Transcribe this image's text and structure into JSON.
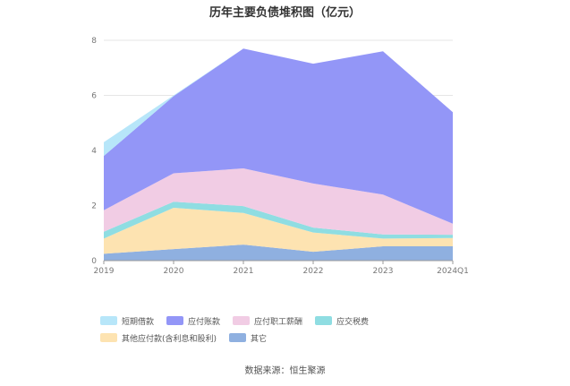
{
  "chart_data": {
    "type": "area",
    "stacked": true,
    "title": "历年主要负债堆积图（亿元）",
    "categories": [
      "2019",
      "2020",
      "2021",
      "2022",
      "2023",
      "2024Q1"
    ],
    "yticks": [
      "0",
      "2",
      "4",
      "6",
      "8"
    ],
    "ylim": [
      0,
      8
    ],
    "grid": true,
    "legend_position": "bottom",
    "series": [
      {
        "name": "其它",
        "color": "#8fb0e0",
        "values": [
          0.25,
          0.42,
          0.58,
          0.32,
          0.52,
          0.52
        ]
      },
      {
        "name": "其他应付款(含利息和股利)",
        "color": "#fde3b1",
        "values": [
          0.55,
          1.5,
          1.15,
          0.7,
          0.28,
          0.3
        ]
      },
      {
        "name": "应交税费",
        "color": "#8fdde2",
        "values": [
          0.25,
          0.22,
          0.25,
          0.18,
          0.15,
          0.12
        ]
      },
      {
        "name": "应付职工薪酬",
        "color": "#f1cce4",
        "values": [
          0.78,
          1.03,
          1.37,
          1.6,
          1.45,
          0.4
        ]
      },
      {
        "name": "应付账款",
        "color": "#9396f7",
        "values": [
          1.97,
          2.8,
          4.35,
          4.35,
          5.2,
          4.05
        ]
      },
      {
        "name": "短期借款",
        "color": "#b7e6f9",
        "values": [
          0.5,
          0.03,
          0,
          0,
          0,
          0
        ]
      }
    ],
    "source": "数据来源：恒生聚源"
  }
}
